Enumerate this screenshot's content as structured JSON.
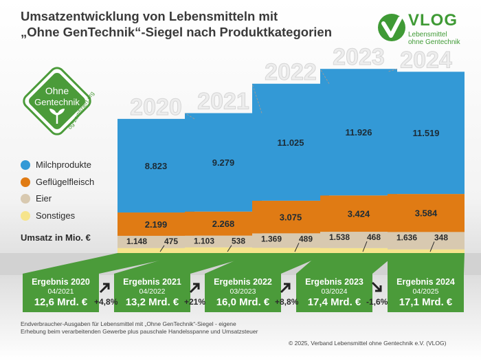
{
  "title": {
    "line1": "Umsatzentwicklung von Lebensmitteln mit",
    "line2": "„Ohne GenTechnik“-Siegel nach Produktkategorien"
  },
  "logo": {
    "word": "VLOG",
    "sub1": "Lebensmittel",
    "sub2": "ohne Gentechnik"
  },
  "seal": {
    "line1": "Ohne",
    "line2": "Gentechnik",
    "url": "og-zertifiziert.org"
  },
  "colors": {
    "milch": "#3399d6",
    "gefluegel": "#e07b14",
    "eier": "#d8c9b0",
    "sonstiges": "#f6e48c",
    "green": "#4b9b3a"
  },
  "chart_data": {
    "type": "bar",
    "stacked": true,
    "categories": [
      "2020",
      "2021",
      "2022",
      "2023",
      "2024"
    ],
    "ylabel": "Umsatz in Mio. €",
    "legend_position": "left",
    "series": [
      {
        "name": "Milchprodukte",
        "values": [
          8823,
          9279,
          11025,
          11926,
          11519
        ],
        "labels": [
          "8.823",
          "9.279",
          "11.025",
          "11.926",
          "11.519"
        ]
      },
      {
        "name": "Geflügelfleisch",
        "values": [
          2199,
          2268,
          3075,
          3424,
          3584
        ],
        "labels": [
          "2.199",
          "2.268",
          "3.075",
          "3.424",
          "3.584"
        ]
      },
      {
        "name": "Eier",
        "values": [
          1148,
          1103,
          1369,
          1538,
          1636
        ],
        "labels": [
          "1.148",
          "1.103",
          "1.369",
          "1.538",
          "1.636"
        ]
      },
      {
        "name": "Sonstiges",
        "values": [
          475,
          538,
          489,
          468,
          348
        ],
        "labels": [
          "475",
          "538",
          "489",
          "468",
          "348"
        ]
      }
    ]
  },
  "results": [
    {
      "title": "Ergebnis 2020",
      "date": "04/2021",
      "total": "12,6 Mrd. €"
    },
    {
      "title": "Ergebnis 2021",
      "date": "04/2022",
      "total": "13,2 Mrd. €"
    },
    {
      "title": "Ergebnis 2022",
      "date": "03/2023",
      "total": "16,0 Mrd. €"
    },
    {
      "title": "Ergebnis 2023",
      "date": "03/2024",
      "total": "17,4 Mrd. €"
    },
    {
      "title": "Ergebnis 2024",
      "date": "04/2025",
      "total": "17,1 Mrd. €"
    }
  ],
  "changes": [
    {
      "label": "+4,8%",
      "direction": "up"
    },
    {
      "label": "+21%",
      "direction": "up"
    },
    {
      "label": "+8,8%",
      "direction": "up"
    },
    {
      "label": "-1,6%",
      "direction": "down"
    }
  ],
  "footnote": "Endverbraucher-Ausgaben für Lebensmittel mit „Ohne GenTechnik“-Siegel - eigene Erhebung beim verarbeitenden Gewerbe plus pauschale Handelsspanne und Umsatzsteuer",
  "copyright": "© 2025, Verband Lebensmittel ohne Gentechnik e.V. (VLOG)"
}
